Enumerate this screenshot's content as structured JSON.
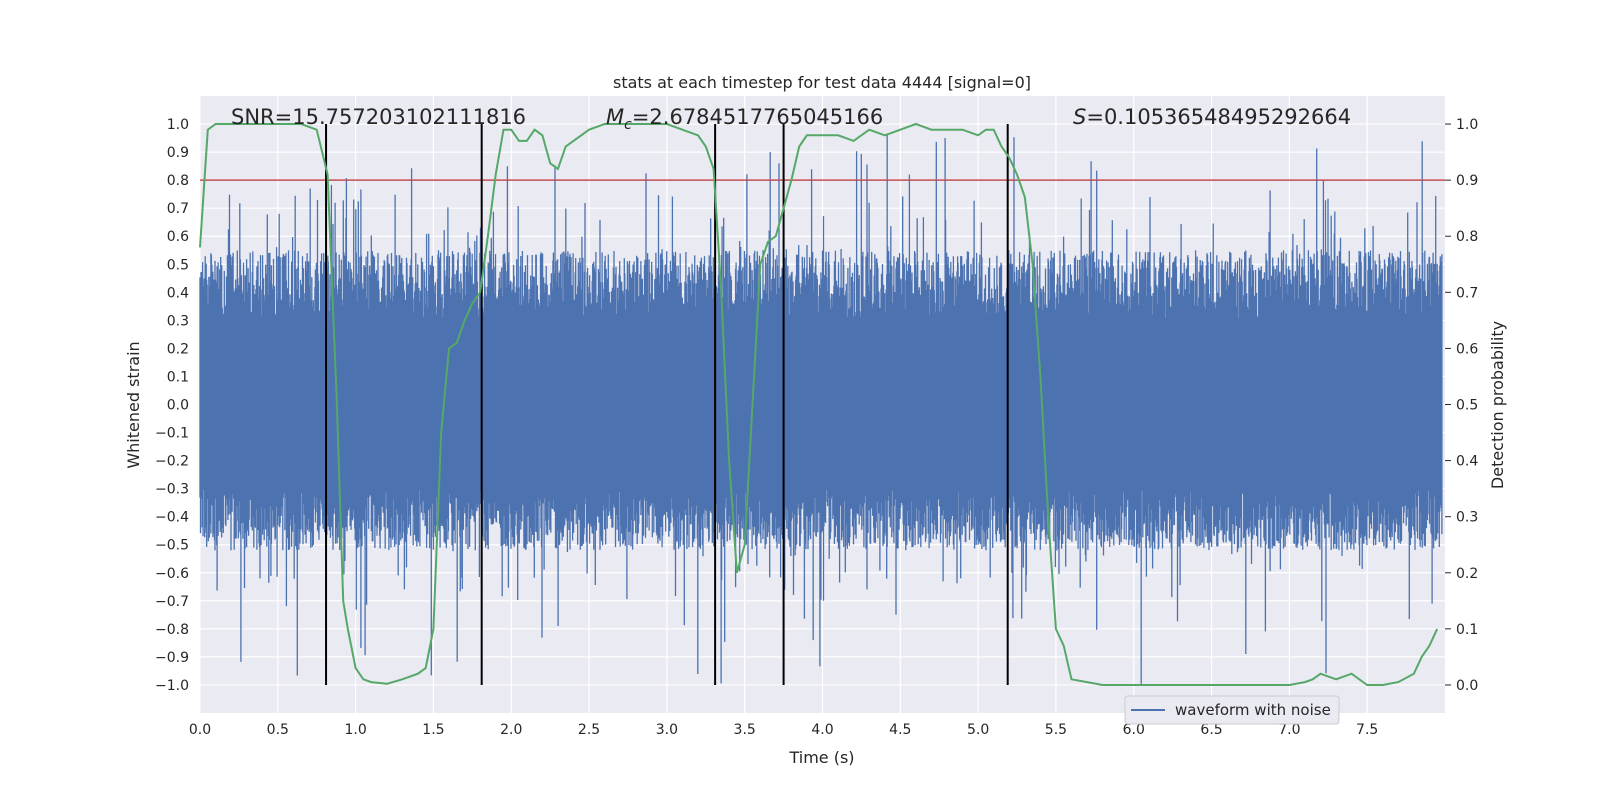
{
  "chart_data": {
    "type": "line",
    "title": "stats at each timestep for test data 4444 [signal=0]",
    "xlabel": "Time (s)",
    "ylabel": "Whitened strain",
    "y2label": "Detection probability",
    "xlim": [
      0.0,
      8.0
    ],
    "ylim": [
      -1.1,
      1.1
    ],
    "y2lim": [
      -0.05,
      1.05
    ],
    "grid": true,
    "legend_position": "lower-right",
    "x_ticks": [
      "0.0",
      "0.5",
      "1.0",
      "1.5",
      "2.0",
      "2.5",
      "3.0",
      "3.5",
      "4.0",
      "4.5",
      "5.0",
      "5.5",
      "6.0",
      "6.5",
      "7.0",
      "7.5"
    ],
    "y_ticks": [
      "1.0",
      "0.9",
      "0.8",
      "0.7",
      "0.6",
      "0.5",
      "0.4",
      "0.3",
      "0.2",
      "0.1",
      "0.0",
      "−0.1",
      "−0.2",
      "−0.3",
      "−0.4",
      "−0.5",
      "−0.6",
      "−0.7",
      "−0.8",
      "−0.9",
      "−1.0"
    ],
    "y2_ticks": [
      "1.0",
      "0.9",
      "0.8",
      "0.7",
      "0.6",
      "0.5",
      "0.4",
      "0.3",
      "0.2",
      "0.1",
      "0.0"
    ],
    "annotations": {
      "snr": "SNR=15.757203102111816",
      "mc_symbol": "M",
      "mc_sub": "c",
      "mc_value": "=2.6784517765045166",
      "s_symbol": "S",
      "s_value": "=0.10536548495292664"
    },
    "threshold_line": {
      "y2": 0.9,
      "color": "#c44e52"
    },
    "vertical_markers": [
      0.81,
      1.81,
      3.31,
      3.75,
      5.19
    ],
    "series": [
      {
        "name": "waveform with noise",
        "color": "#4c72b0",
        "kind": "noise",
        "envelope_max": 1.0,
        "envelope_min": -1.0
      },
      {
        "color": "#55a868",
        "axis": "right",
        "x": [
          0.0,
          0.05,
          0.1,
          0.2,
          0.3,
          0.5,
          0.65,
          0.75,
          0.82,
          0.88,
          0.92,
          0.95,
          1.0,
          1.05,
          1.1,
          1.2,
          1.3,
          1.4,
          1.45,
          1.5,
          1.55,
          1.6,
          1.65,
          1.7,
          1.75,
          1.8,
          1.85,
          1.9,
          1.95,
          2.0,
          2.05,
          2.1,
          2.15,
          2.2,
          2.25,
          2.3,
          2.35,
          2.4,
          2.5,
          2.6,
          2.7,
          2.8,
          2.9,
          3.0,
          3.1,
          3.2,
          3.25,
          3.3,
          3.35,
          3.4,
          3.45,
          3.5,
          3.55,
          3.6,
          3.65,
          3.7,
          3.75,
          3.8,
          3.85,
          3.9,
          4.0,
          4.1,
          4.2,
          4.3,
          4.4,
          4.5,
          4.6,
          4.7,
          4.8,
          4.9,
          5.0,
          5.05,
          5.1,
          5.15,
          5.2,
          5.25,
          5.3,
          5.35,
          5.4,
          5.45,
          5.5,
          5.55,
          5.6,
          5.7,
          5.8,
          6.0,
          6.2,
          6.5,
          6.8,
          7.0,
          7.1,
          7.15,
          7.2,
          7.3,
          7.4,
          7.5,
          7.55,
          7.6,
          7.7,
          7.8,
          7.85,
          7.9,
          7.95
        ],
        "values": [
          0.78,
          0.99,
          1.0,
          1.0,
          1.0,
          1.0,
          1.0,
          0.99,
          0.91,
          0.5,
          0.15,
          0.1,
          0.03,
          0.01,
          0.005,
          0.002,
          0.01,
          0.02,
          0.03,
          0.1,
          0.45,
          0.6,
          0.61,
          0.65,
          0.68,
          0.7,
          0.8,
          0.91,
          0.99,
          0.99,
          0.97,
          0.97,
          0.99,
          0.98,
          0.93,
          0.92,
          0.96,
          0.97,
          0.99,
          1.0,
          1.0,
          1.0,
          1.0,
          1.0,
          0.99,
          0.98,
          0.96,
          0.92,
          0.7,
          0.4,
          0.2,
          0.25,
          0.5,
          0.75,
          0.79,
          0.8,
          0.85,
          0.9,
          0.96,
          0.98,
          0.98,
          0.98,
          0.97,
          0.99,
          0.98,
          0.99,
          1.0,
          0.99,
          0.99,
          0.99,
          0.98,
          0.99,
          0.99,
          0.96,
          0.94,
          0.91,
          0.87,
          0.75,
          0.55,
          0.3,
          0.1,
          0.07,
          0.01,
          0.005,
          0.0,
          0.0,
          0.0,
          0.0,
          0.0,
          0.0,
          0.005,
          0.01,
          0.02,
          0.01,
          0.02,
          0.0,
          0.0,
          0.0,
          0.005,
          0.02,
          0.05,
          0.07,
          0.1
        ]
      }
    ]
  }
}
